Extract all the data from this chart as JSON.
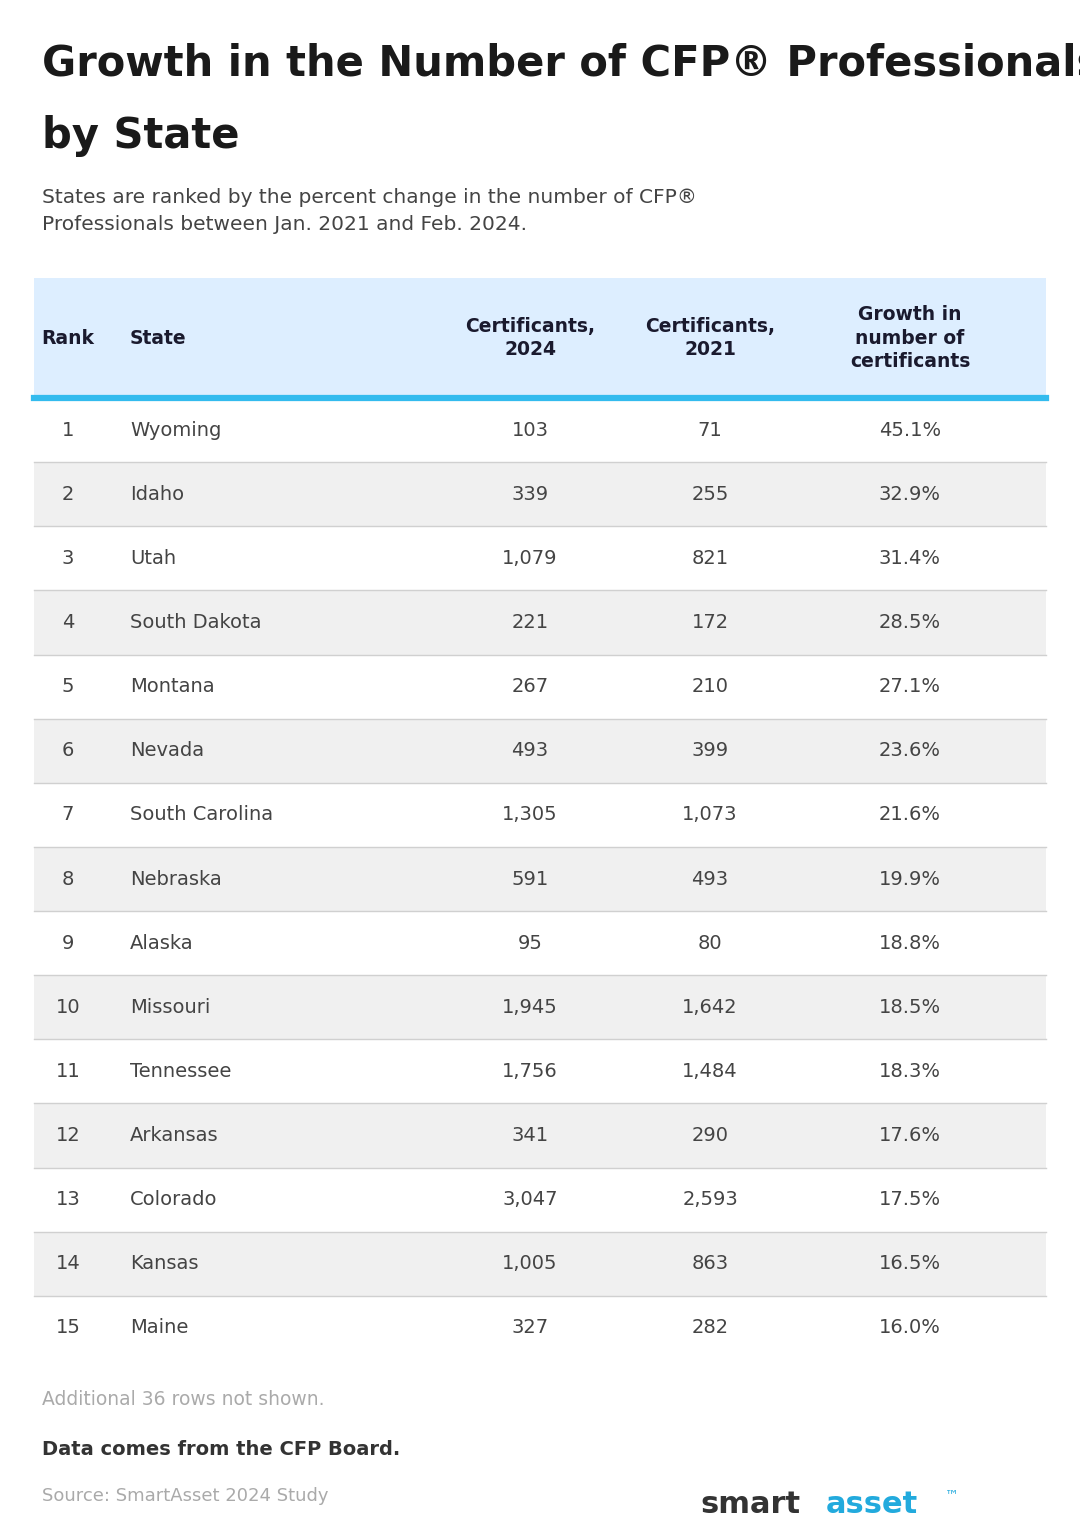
{
  "title_line1": "Growth in the Number of CFP® Professionals",
  "title_line2": "by State",
  "subtitle": "States are ranked by the percent change in the number of CFP®\nProfessionals between Jan. 2021 and Feb. 2024.",
  "header": [
    "Rank",
    "State",
    "Certificants,\n2024",
    "Certificants,\n2021",
    "Growth in\nnumber of\ncertificants"
  ],
  "rows": [
    [
      1,
      "Wyoming",
      "103",
      "71",
      "45.1%"
    ],
    [
      2,
      "Idaho",
      "339",
      "255",
      "32.9%"
    ],
    [
      3,
      "Utah",
      "1,079",
      "821",
      "31.4%"
    ],
    [
      4,
      "South Dakota",
      "221",
      "172",
      "28.5%"
    ],
    [
      5,
      "Montana",
      "267",
      "210",
      "27.1%"
    ],
    [
      6,
      "Nevada",
      "493",
      "399",
      "23.6%"
    ],
    [
      7,
      "South Carolina",
      "1,305",
      "1,073",
      "21.6%"
    ],
    [
      8,
      "Nebraska",
      "591",
      "493",
      "19.9%"
    ],
    [
      9,
      "Alaska",
      "95",
      "80",
      "18.8%"
    ],
    [
      10,
      "Missouri",
      "1,945",
      "1,642",
      "18.5%"
    ],
    [
      11,
      "Tennessee",
      "1,756",
      "1,484",
      "18.3%"
    ],
    [
      12,
      "Arkansas",
      "341",
      "290",
      "17.6%"
    ],
    [
      13,
      "Colorado",
      "3,047",
      "2,593",
      "17.5%"
    ],
    [
      14,
      "Kansas",
      "1,005",
      "863",
      "16.5%"
    ],
    [
      15,
      "Maine",
      "327",
      "282",
      "16.0%"
    ]
  ],
  "footer_note": "Additional 36 rows not shown.",
  "footer_data": "Data comes from the CFP Board.",
  "footer_source": "Source: SmartAsset 2024 Study",
  "bg_color": "#ffffff",
  "header_bg_color": "#ddeeff",
  "row_even_color": "#f0f0f0",
  "row_odd_color": "#ffffff",
  "header_text_color": "#1a1a2e",
  "body_text_color": "#444444",
  "title_color": "#1a1a1a",
  "subtitle_color": "#444444",
  "divider_color": "#d0d0d0",
  "header_divider_color": "#33bbee",
  "note_color": "#aaaaaa",
  "source_color": "#aaaaaa",
  "footer_data_color": "#333333",
  "smart_color": "#333333",
  "asset_color": "#22aadd"
}
